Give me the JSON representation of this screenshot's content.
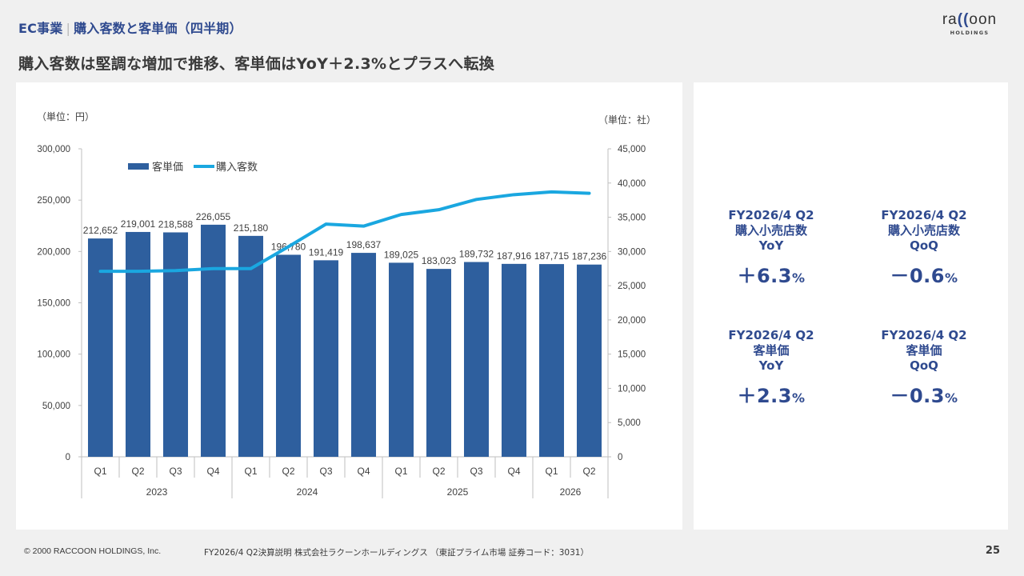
{
  "header": {
    "section": "EC事業",
    "separator": "|",
    "section_sub": "購入客数と客単価（四半期）",
    "headline": "購入客数は堅調な増加で推移、客単価はYoY＋2.3%とプラスへ転換",
    "logo_wordmark_pre": "ra",
    "logo_wordmark_paren": "((",
    "logo_wordmark_post": "oon",
    "logo_sub": "HOLDINGS"
  },
  "chart_data": {
    "type": "bar",
    "title": "",
    "left_unit_label": "（単位：円）",
    "right_unit_label": "（単位：社）",
    "categories": [
      "Q1",
      "Q2",
      "Q3",
      "Q4",
      "Q1",
      "Q2",
      "Q3",
      "Q4",
      "Q1",
      "Q2",
      "Q3",
      "Q4",
      "Q1",
      "Q2"
    ],
    "year_groups": [
      {
        "label": "2023",
        "count": 4
      },
      {
        "label": "2024",
        "count": 4
      },
      {
        "label": "2025",
        "count": 4
      },
      {
        "label": "2026",
        "count": 2
      }
    ],
    "series": [
      {
        "name": "客単価",
        "type": "bar",
        "axis": "left",
        "color": "#2e5f9e",
        "values": [
          212652,
          219001,
          218588,
          226055,
          215180,
          196780,
          191419,
          198637,
          189025,
          183023,
          189732,
          187916,
          187715,
          187236
        ],
        "labels": [
          "212,652",
          "219,001",
          "218,588",
          "226,055",
          "215,180",
          "196,780",
          "191,419",
          "198,637",
          "189,025",
          "183,023",
          "189,732",
          "187,916",
          "187,715",
          "187,236"
        ]
      },
      {
        "name": "購入客数",
        "type": "line",
        "axis": "right",
        "color": "#1aa7e0",
        "values": [
          27100,
          27100,
          27200,
          27500,
          27500,
          30700,
          34000,
          33700,
          35400,
          36100,
          37600,
          38300,
          38700,
          38500
        ]
      }
    ],
    "left_axis": {
      "min": 0,
      "max": 300000,
      "ticks": [
        "0",
        "50,000",
        "100,000",
        "150,000",
        "200,000",
        "250,000",
        "300,000"
      ]
    },
    "right_axis": {
      "min": 0,
      "max": 45000,
      "ticks": [
        "0",
        "5,000",
        "10,000",
        "15,000",
        "20,000",
        "25,000",
        "30,000",
        "35,000",
        "40,000",
        "45,000"
      ]
    },
    "legend": {
      "placement": "top-left",
      "items": [
        "客単価",
        "購入客数"
      ]
    },
    "grid": false
  },
  "kpis": [
    {
      "period": "FY2026/4 Q2",
      "metric": "購入小売店数",
      "basis": "YoY",
      "value": "＋6.3",
      "unit": "%"
    },
    {
      "period": "FY2026/4 Q2",
      "metric": "購入小売店数",
      "basis": "QoQ",
      "value": "－0.6",
      "unit": "%"
    },
    {
      "period": "FY2026/4 Q2",
      "metric": "客単価",
      "basis": "YoY",
      "value": "＋2.3",
      "unit": "%"
    },
    {
      "period": "FY2026/4 Q2",
      "metric": "客単価",
      "basis": "QoQ",
      "value": "－0.3",
      "unit": "%"
    }
  ],
  "footer": {
    "copyright": "© 2000 RACCOON HOLDINGS, Inc.",
    "doc": "FY2026/4 Q2決算説明 株式会社ラクーンホールディングス （東証プライム市場 証券コード：3031）",
    "page": "25"
  }
}
